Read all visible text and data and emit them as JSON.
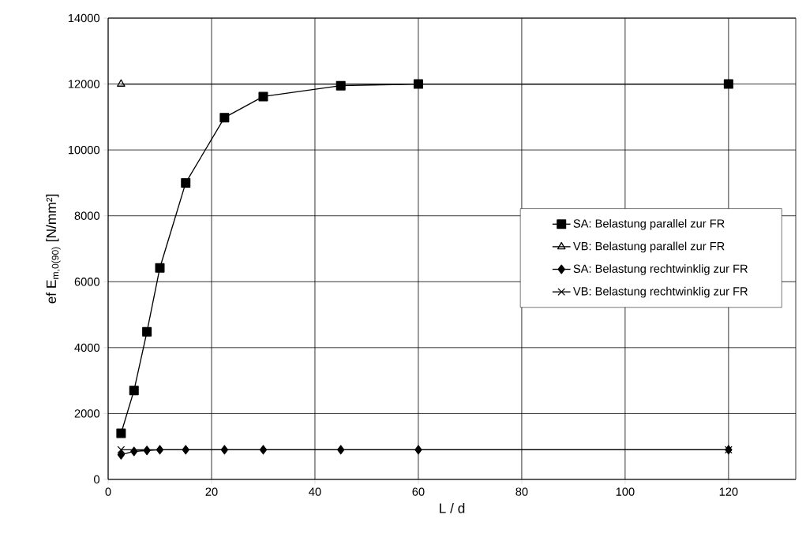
{
  "chart_data": {
    "type": "line",
    "xlabel": "L / d",
    "ylabel": "ef E$_{m,0(90)}$ [N/mm²]",
    "xlim": [
      0,
      133
    ],
    "xticks": [
      0,
      20,
      40,
      60,
      80,
      100,
      120
    ],
    "ylim": [
      0,
      14000
    ],
    "yticks": [
      0,
      2000,
      4000,
      6000,
      8000,
      10000,
      12000,
      14000
    ],
    "grid": true,
    "legend": "right",
    "line_style": "solid",
    "series": [
      {
        "name": "SA: Belastung parallel zur FR",
        "color": "#000000",
        "marker": "square",
        "x": [
          2.5,
          5,
          7.5,
          10,
          15,
          22.5,
          30,
          45,
          60,
          120
        ],
        "values": [
          1400,
          2700,
          4480,
          6420,
          9000,
          10980,
          11620,
          11950,
          12000,
          12000
        ]
      },
      {
        "name": "VB: Belastung parallel zur FR",
        "color": "#000000",
        "marker": "triangle",
        "x": [
          2.5,
          120
        ],
        "values": [
          12000,
          12000
        ]
      },
      {
        "name": "SA: Belastung rechtwinklig zur FR",
        "color": "#000000",
        "marker": "diamond",
        "x": [
          2.5,
          5,
          7.5,
          10,
          15,
          22.5,
          30,
          45,
          60,
          120
        ],
        "values": [
          750,
          850,
          880,
          900,
          900,
          900,
          900,
          900,
          900,
          900
        ]
      },
      {
        "name": "VB: Belastung rechtwinklig zur FR",
        "color": "#000000",
        "marker": "cross",
        "x": [
          2.5,
          120
        ],
        "values": [
          900,
          900
        ]
      }
    ]
  }
}
